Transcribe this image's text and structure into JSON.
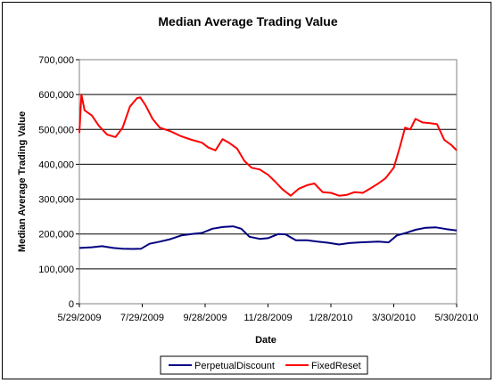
{
  "chart_data": {
    "type": "line",
    "title": "Median Average Trading Value",
    "xlabel": "Date",
    "ylabel": "Median Average Trading Value",
    "ylim": [
      0,
      700000
    ],
    "yticks": [
      "0",
      "100,000",
      "200,000",
      "300,000",
      "400,000",
      "500,000",
      "600,000",
      "700,000"
    ],
    "xlim": [
      "2009-05-29",
      "2010-05-30"
    ],
    "xticks": [
      "5/29/2009",
      "7/29/2009",
      "9/28/2009",
      "11/28/2009",
      "1/28/2010",
      "3/30/2010",
      "5/30/2010"
    ],
    "grid": "horizontal",
    "legend_position": "bottom",
    "series": [
      {
        "name": "PerpetualDiscount",
        "color": "#000080",
        "x": [
          "2009-05-29",
          "2009-06-10",
          "2009-06-20",
          "2009-07-01",
          "2009-07-10",
          "2009-07-20",
          "2009-07-28",
          "2009-08-05",
          "2009-08-15",
          "2009-08-25",
          "2009-09-05",
          "2009-09-15",
          "2009-09-25",
          "2009-10-05",
          "2009-10-15",
          "2009-10-25",
          "2009-11-02",
          "2009-11-10",
          "2009-11-20",
          "2009-11-28",
          "2009-12-08",
          "2009-12-15",
          "2009-12-25",
          "2010-01-05",
          "2010-01-15",
          "2010-01-25",
          "2010-02-05",
          "2010-02-15",
          "2010-02-25",
          "2010-03-05",
          "2010-03-15",
          "2010-03-25",
          "2010-04-02",
          "2010-04-12",
          "2010-04-20",
          "2010-04-30",
          "2010-05-10",
          "2010-05-20",
          "2010-05-30"
        ],
        "y": [
          160000,
          162000,
          165000,
          160000,
          158000,
          157000,
          158000,
          172000,
          178000,
          185000,
          196000,
          200000,
          203000,
          215000,
          220000,
          222000,
          215000,
          192000,
          186000,
          188000,
          200000,
          199000,
          182000,
          182000,
          178000,
          175000,
          170000,
          174000,
          176000,
          177000,
          178000,
          176000,
          196000,
          204000,
          212000,
          218000,
          219000,
          214000,
          210000
        ]
      },
      {
        "name": "FixedReset",
        "color": "#ff0000",
        "x": [
          "2009-05-29",
          "2009-05-31",
          "2009-06-03",
          "2009-06-10",
          "2009-06-17",
          "2009-06-25",
          "2009-07-03",
          "2009-07-10",
          "2009-07-17",
          "2009-07-24",
          "2009-07-27",
          "2009-08-01",
          "2009-08-08",
          "2009-08-15",
          "2009-08-25",
          "2009-09-05",
          "2009-09-15",
          "2009-09-25",
          "2009-10-01",
          "2009-10-08",
          "2009-10-15",
          "2009-10-22",
          "2009-10-29",
          "2009-11-05",
          "2009-11-12",
          "2009-11-20",
          "2009-11-28",
          "2009-12-05",
          "2009-12-12",
          "2009-12-20",
          "2009-12-28",
          "2010-01-05",
          "2010-01-12",
          "2010-01-20",
          "2010-01-28",
          "2010-02-05",
          "2010-02-12",
          "2010-02-20",
          "2010-02-28",
          "2010-03-07",
          "2010-03-15",
          "2010-03-22",
          "2010-03-30",
          "2010-04-05",
          "2010-04-10",
          "2010-04-15",
          "2010-04-20",
          "2010-04-27",
          "2010-05-04",
          "2010-05-11",
          "2010-05-18",
          "2010-05-25",
          "2010-05-30"
        ],
        "y": [
          490000,
          600000,
          555000,
          540000,
          510000,
          485000,
          478000,
          505000,
          565000,
          590000,
          592000,
          570000,
          530000,
          505000,
          495000,
          480000,
          470000,
          462000,
          448000,
          440000,
          472000,
          460000,
          445000,
          410000,
          390000,
          385000,
          370000,
          350000,
          328000,
          310000,
          330000,
          340000,
          345000,
          320000,
          318000,
          310000,
          312000,
          320000,
          318000,
          330000,
          345000,
          360000,
          390000,
          450000,
          505000,
          500000,
          530000,
          520000,
          518000,
          515000,
          470000,
          455000,
          440000
        ]
      }
    ]
  }
}
